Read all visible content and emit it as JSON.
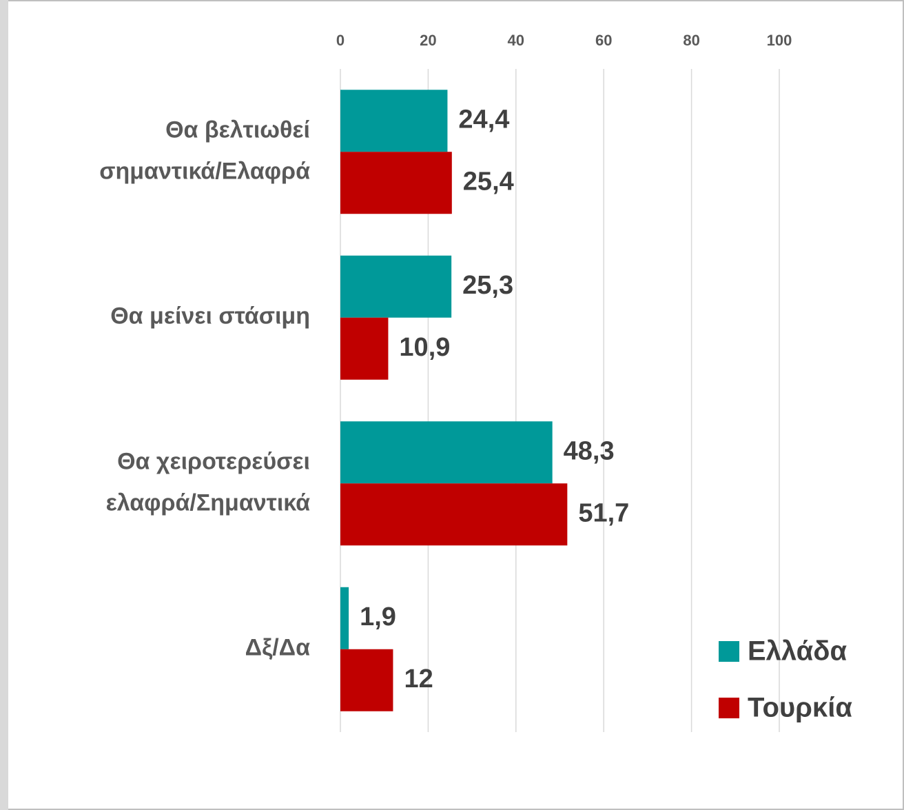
{
  "chart_data": {
    "type": "hbar",
    "categories": [
      "Θα βελτιωθεί σημαντικά/Ελαφρά",
      "Θα μείνει στάσιμη",
      "Θα χειροτερεύσει ελαφρά/Σημαντικά",
      "Δξ/Δα"
    ],
    "series": [
      {
        "name": "Ελλάδα",
        "color": "#009999",
        "values": [
          24.4,
          25.3,
          48.3,
          1.9
        ],
        "value_labels": [
          "24,4",
          "25,3",
          "48,3",
          "1,9"
        ]
      },
      {
        "name": "Τουρκία",
        "color": "#c00000",
        "values": [
          25.4,
          10.9,
          51.7,
          12
        ],
        "value_labels": [
          "25,4",
          "10,9",
          "51,7",
          "12"
        ]
      }
    ],
    "xlim": [
      0,
      100
    ],
    "xticks": [
      0,
      20,
      40,
      60,
      80,
      100
    ],
    "grid": true,
    "legend": "lower right"
  }
}
